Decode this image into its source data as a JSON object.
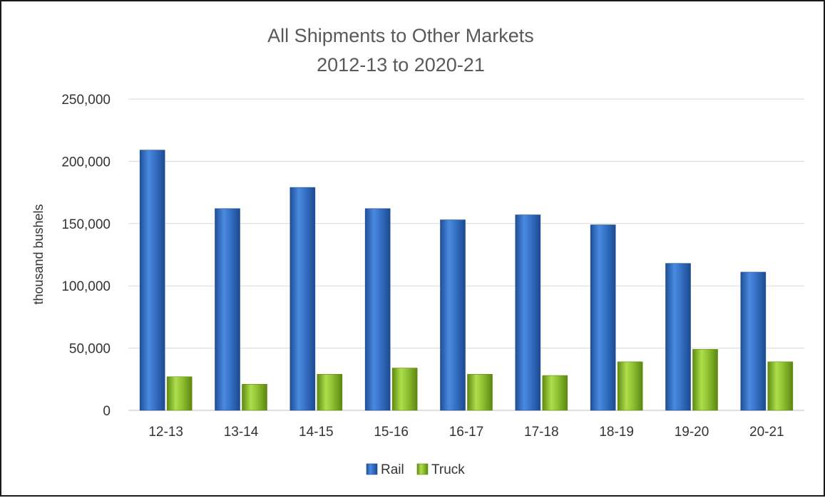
{
  "chart_data": {
    "type": "bar",
    "title": "All Shipments to Other Markets",
    "subtitle": "2012-13 to 2020-21",
    "xlabel": "",
    "ylabel": "thousand bushels",
    "ylim": [
      0,
      250000
    ],
    "yticks": [
      0,
      50000,
      100000,
      150000,
      200000,
      250000
    ],
    "ytick_labels": [
      "0",
      "50,000",
      "100,000",
      "150,000",
      "200,000",
      "250,000"
    ],
    "categories": [
      "12-13",
      "13-14",
      "14-15",
      "15-16",
      "16-17",
      "17-18",
      "18-19",
      "19-20",
      "20-21"
    ],
    "series": [
      {
        "name": "Rail",
        "color": "#2f6fc4",
        "values": [
          209000,
          162000,
          179000,
          162000,
          153000,
          157000,
          149000,
          118000,
          111000
        ]
      },
      {
        "name": "Truck",
        "color": "#8cbb2a",
        "values": [
          27000,
          21000,
          29000,
          34000,
          29000,
          28000,
          39000,
          49000,
          39000
        ]
      }
    ],
    "grid": true,
    "legend_position": "bottom"
  }
}
